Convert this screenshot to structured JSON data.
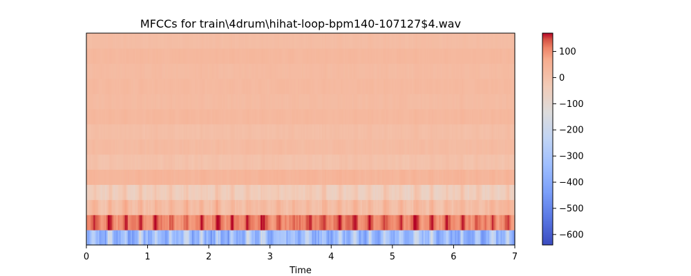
{
  "chart_data": {
    "type": "heatmap",
    "title": "MFCCs for train\\4drum\\hihat-loop-bpm140-107127$4.wav",
    "xlabel": "Time",
    "ylabel": "",
    "xlim": [
      0,
      7
    ],
    "x_ticks": [
      "0",
      "1",
      "2",
      "3",
      "4",
      "5",
      "6",
      "7"
    ],
    "n_coefficients": 14,
    "n_frames": 300,
    "colormap": "coolwarm",
    "color_range": [
      -640,
      170
    ],
    "colorbar_ticks": [
      "100",
      "0",
      "−100",
      "−200",
      "−300",
      "−400",
      "−500",
      "−600"
    ],
    "colorbar_tick_values": [
      100,
      0,
      -100,
      -200,
      -300,
      -400,
      -500,
      -600
    ],
    "coefficient_mean_values": [
      -330,
      120,
      20,
      -40,
      40,
      0,
      20,
      10,
      30,
      20,
      25,
      20,
      30,
      15
    ],
    "coefficient_variation": [
      250,
      70,
      60,
      60,
      25,
      25,
      20,
      20,
      15,
      15,
      15,
      15,
      12,
      12
    ]
  }
}
